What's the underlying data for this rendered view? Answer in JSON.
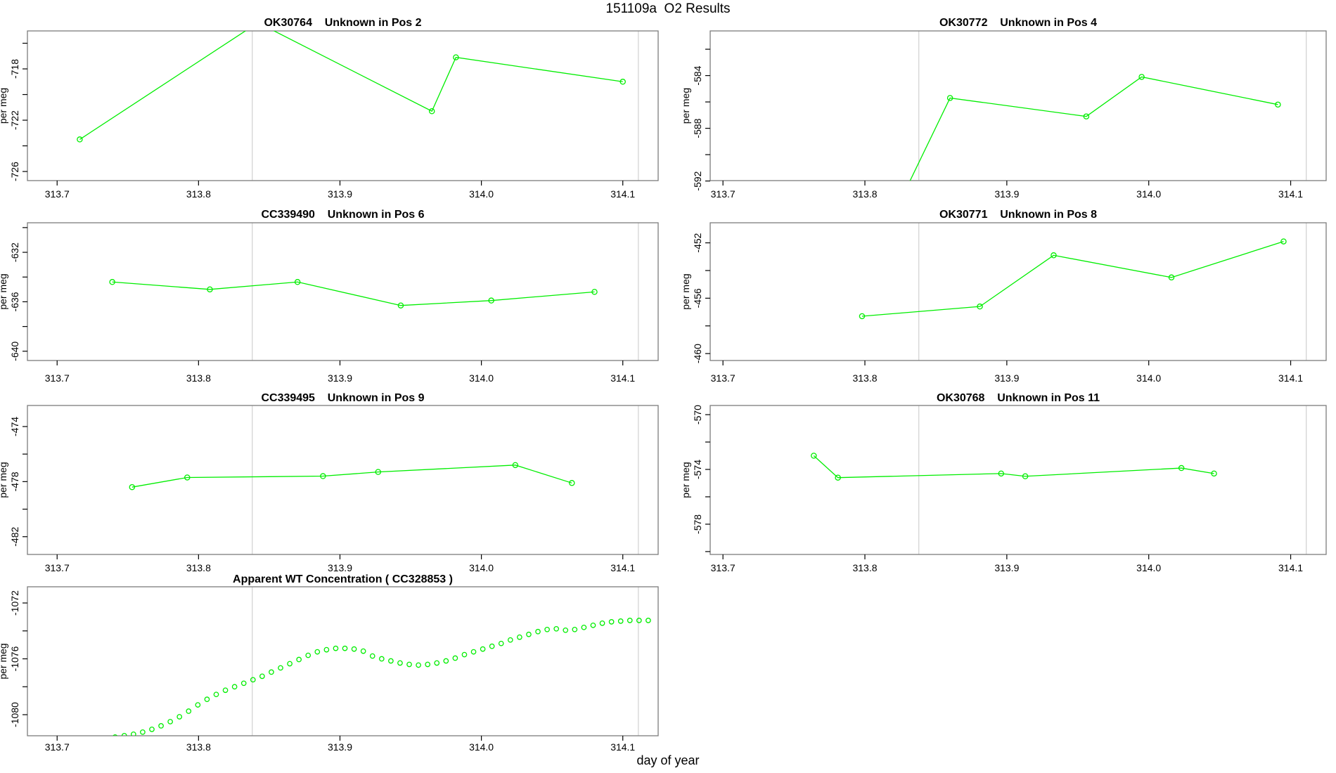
{
  "figure_title": "151109a  O2 Results",
  "xlabel": "day of year",
  "ylabel": "per meg",
  "colors": {
    "series_green": "#00ee00",
    "reference_line_gray": "#d0d0d0",
    "box_gray": "#7d7d7d",
    "axis_black": "#000000",
    "text_black": "#000000",
    "background": "#ffffff"
  },
  "chart_data": [
    {
      "type": "line",
      "title": "OK30764    Unknown in Pos 2",
      "row": 1,
      "col": "left",
      "xlim": [
        313.679,
        314.125
      ],
      "ylim": [
        -726.71,
        -715.04
      ],
      "xticks": [
        313.7,
        313.8,
        313.9,
        314.0,
        314.1
      ],
      "yticks": [
        -716,
        -718,
        -720,
        -722,
        -724,
        -726
      ],
      "ytick_labels": [
        -718,
        -722,
        -726
      ],
      "vlines": [
        313.838,
        314.111
      ],
      "x": [
        313.716,
        313.842,
        313.965,
        313.982,
        314.1
      ],
      "y": [
        -723.5,
        -714.4,
        -721.3,
        -717.1,
        -719.0
      ]
    },
    {
      "type": "line",
      "title": "OK30772    Unknown in Pos 4",
      "row": 1,
      "col": "right",
      "xlim": [
        313.691,
        314.125
      ],
      "ylim": [
        -591.97,
        -580.61
      ],
      "xticks": [
        313.7,
        313.8,
        313.9,
        314.0,
        314.1
      ],
      "yticks": [
        -582,
        -584,
        -586,
        -588,
        -590,
        -592
      ],
      "ytick_labels": [
        -584,
        -588,
        -592
      ],
      "vlines": [
        313.838,
        314.111
      ],
      "x": [
        313.825,
        313.86,
        313.956,
        313.995,
        314.091
      ],
      "y": [
        -593.5,
        -585.7,
        -587.1,
        -584.1,
        -586.2
      ]
    },
    {
      "type": "line",
      "title": "CC339490    Unknown in Pos 6",
      "row": 2,
      "col": "left",
      "xlim": [
        313.679,
        314.125
      ],
      "ylim": [
        -640.75,
        -629.61
      ],
      "xticks": [
        313.7,
        313.8,
        313.9,
        314.0,
        314.1
      ],
      "yticks": [
        -630,
        -632,
        -634,
        -636,
        -638,
        -640
      ],
      "ytick_labels": [
        -632,
        -636,
        -640
      ],
      "vlines": [
        313.838,
        314.111
      ],
      "x": [
        313.739,
        313.808,
        313.87,
        313.943,
        314.007,
        314.08
      ],
      "y": [
        -634.4,
        -635.0,
        -634.4,
        -636.3,
        -635.9,
        -635.2
      ]
    },
    {
      "type": "line",
      "title": "OK30771    Unknown in Pos 8",
      "row": 2,
      "col": "right",
      "xlim": [
        313.691,
        314.125
      ],
      "ylim": [
        -460.5,
        -450.55
      ],
      "xticks": [
        313.7,
        313.8,
        313.9,
        314.0,
        314.1
      ],
      "yticks": [
        -452,
        -454,
        -456,
        -458,
        -460
      ],
      "ytick_labels": [
        -452,
        -456,
        -460
      ],
      "vlines": [
        313.838,
        314.111
      ],
      "x": [
        313.798,
        313.881,
        313.933,
        314.016,
        314.095
      ],
      "y": [
        -457.3,
        -456.6,
        -452.9,
        -454.5,
        -451.9
      ]
    },
    {
      "type": "line",
      "title": "CC339495    Unknown in Pos 9",
      "row": 3,
      "col": "left",
      "xlim": [
        313.679,
        314.125
      ],
      "ylim": [
        -483.29,
        -472.47
      ],
      "xticks": [
        313.7,
        313.8,
        313.9,
        314.0,
        314.1
      ],
      "yticks": [
        -474,
        -476,
        -478,
        -480,
        -482
      ],
      "ytick_labels": [
        -474,
        -478,
        -482
      ],
      "vlines": [
        313.838,
        314.111
      ],
      "x": [
        313.753,
        313.792,
        313.888,
        313.927,
        314.024,
        314.064
      ],
      "y": [
        -478.4,
        -477.7,
        -477.6,
        -477.3,
        -476.8,
        -478.1
      ]
    },
    {
      "type": "line",
      "title": "OK30768    Unknown in Pos 11",
      "row": 3,
      "col": "right",
      "xlim": [
        313.691,
        314.125
      ],
      "ylim": [
        -580.21,
        -569.33
      ],
      "xticks": [
        313.7,
        313.8,
        313.9,
        314.0,
        314.1
      ],
      "yticks": [
        -570,
        -572,
        -574,
        -576,
        -578,
        -580
      ],
      "ytick_labels": [
        -570,
        -574,
        -578
      ],
      "vlines": [
        313.838,
        314.111
      ],
      "x": [
        313.764,
        313.781,
        313.896,
        313.913,
        314.023,
        314.046
      ],
      "y": [
        -573.0,
        -574.6,
        -574.3,
        -574.5,
        -573.9,
        -574.3
      ]
    },
    {
      "type": "scatter",
      "title": "Apparent WT Concentration ( CC328853 )",
      "row": 4,
      "col": "left",
      "xlim": [
        313.679,
        314.125
      ],
      "ylim": [
        -1081.51,
        -1070.84
      ],
      "xticks": [
        313.7,
        313.8,
        313.9,
        314.0,
        314.1
      ],
      "yticks": [
        -1072,
        -1074,
        -1076,
        -1078,
        -1080
      ],
      "ytick_labels": [
        -1072,
        -1076,
        -1080
      ],
      "vlines": [
        313.838,
        314.111
      ],
      "x": [
        313.728,
        313.7345,
        313.741,
        313.7475,
        313.754,
        313.7605,
        313.767,
        313.7735,
        313.78,
        313.7865,
        313.793,
        313.7995,
        313.806,
        313.8125,
        313.819,
        313.8255,
        313.832,
        313.8385,
        313.845,
        313.8515,
        313.858,
        313.8645,
        313.871,
        313.8775,
        313.884,
        313.8905,
        313.897,
        313.9035,
        313.91,
        313.9165,
        313.923,
        313.9295,
        313.936,
        313.9425,
        313.949,
        313.9555,
        313.962,
        313.9685,
        313.975,
        313.9815,
        313.988,
        313.9945,
        314.001,
        314.0075,
        314.014,
        314.0205,
        314.027,
        314.0335,
        314.04,
        314.0465,
        314.053,
        314.0595,
        314.066,
        314.0725,
        314.079,
        314.0855,
        314.092,
        314.0985,
        314.105,
        314.1115,
        314.118
      ],
      "y": [
        -1081.9,
        -1081.75,
        -1081.6,
        -1081.5,
        -1081.4,
        -1081.25,
        -1081.05,
        -1080.8,
        -1080.5,
        -1080.15,
        -1079.75,
        -1079.3,
        -1078.9,
        -1078.55,
        -1078.25,
        -1078.0,
        -1077.75,
        -1077.5,
        -1077.25,
        -1076.95,
        -1076.65,
        -1076.35,
        -1076.05,
        -1075.75,
        -1075.5,
        -1075.35,
        -1075.25,
        -1075.25,
        -1075.3,
        -1075.45,
        -1075.8,
        -1076.0,
        -1076.15,
        -1076.3,
        -1076.4,
        -1076.45,
        -1076.4,
        -1076.3,
        -1076.15,
        -1075.95,
        -1075.7,
        -1075.5,
        -1075.3,
        -1075.1,
        -1074.9,
        -1074.65,
        -1074.45,
        -1074.25,
        -1074.05,
        -1073.9,
        -1073.85,
        -1073.95,
        -1073.9,
        -1073.75,
        -1073.6,
        -1073.45,
        -1073.35,
        -1073.3,
        -1073.25,
        -1073.25,
        -1073.25
      ]
    }
  ]
}
